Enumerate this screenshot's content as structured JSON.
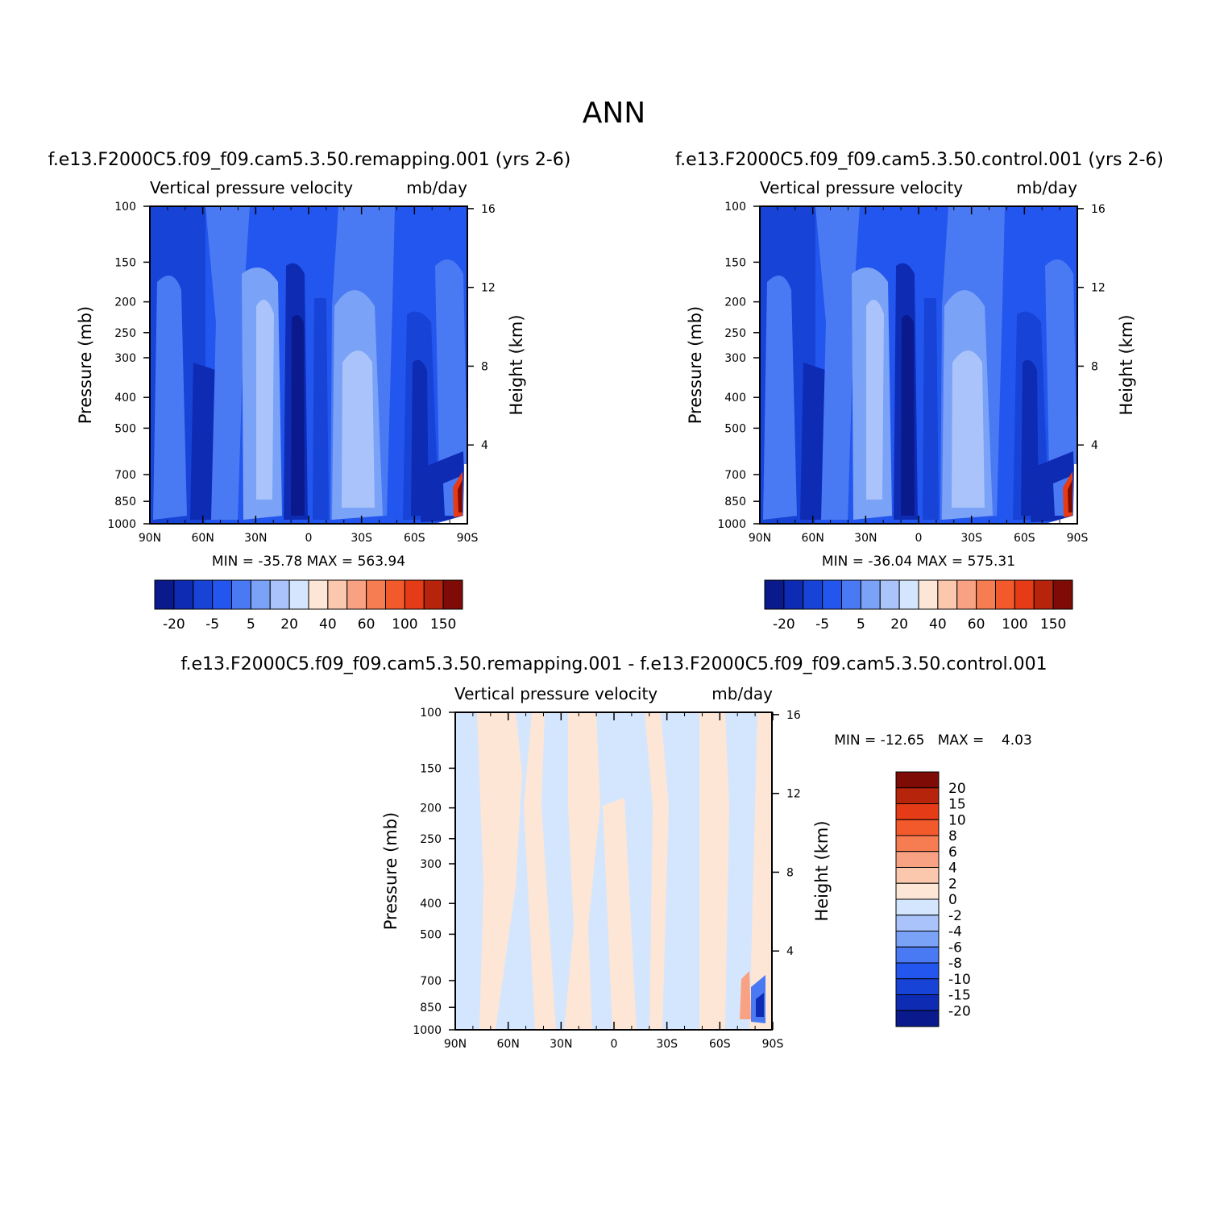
{
  "figure_title": "ANN",
  "colors": {
    "blue_scale": [
      "#0a1a8c",
      "#0e2bb4",
      "#1743d6",
      "#2356ee",
      "#4a7af3",
      "#7aa2f7",
      "#aac4fb",
      "#d4e6fd"
    ],
    "red_scale": [
      "#fde6d6",
      "#fcc8ad",
      "#f9a283",
      "#f67c52",
      "#f25a2c",
      "#e63b17",
      "#b7240c",
      "#7e0b05"
    ]
  },
  "chart_data": [
    {
      "type": "heatmap",
      "title": "f.e13.F2000C5.f09_f09.cam5.3.50.remapping.001 (yrs 2-6)",
      "subtitle_left": "Vertical pressure velocity",
      "subtitle_right": "mb/day",
      "ylabel": "Pressure (mb)",
      "ylabel_right": "Height (km)",
      "x_ticks": [
        "90N",
        "60N",
        "30N",
        "0",
        "30S",
        "60S",
        "90S"
      ],
      "y_ticks": [
        "100",
        "150",
        "200",
        "250",
        "300",
        "400",
        "500",
        "700",
        "850",
        "1000"
      ],
      "y_ticks_right": [
        "16",
        "12",
        "8",
        "4"
      ],
      "ylim": [
        1000,
        100
      ],
      "log_y": true,
      "stats": "MIN = -35.78   MAX = 563.94",
      "colorbar": {
        "orientation": "horizontal",
        "labels": [
          "-20",
          "-5",
          "5",
          "20",
          "40",
          "60",
          "100",
          "150"
        ]
      }
    },
    {
      "type": "heatmap",
      "title": "f.e13.F2000C5.f09_f09.cam5.3.50.control.001 (yrs 2-6)",
      "subtitle_left": "Vertical pressure velocity",
      "subtitle_right": "mb/day",
      "ylabel": "Pressure (mb)",
      "ylabel_right": "Height (km)",
      "x_ticks": [
        "90N",
        "60N",
        "30N",
        "0",
        "30S",
        "60S",
        "90S"
      ],
      "y_ticks": [
        "100",
        "150",
        "200",
        "250",
        "300",
        "400",
        "500",
        "700",
        "850",
        "1000"
      ],
      "y_ticks_right": [
        "16",
        "12",
        "8",
        "4"
      ],
      "ylim": [
        1000,
        100
      ],
      "log_y": true,
      "stats": "MIN = -36.04   MAX = 575.31",
      "colorbar": {
        "orientation": "horizontal",
        "labels": [
          "-20",
          "-5",
          "5",
          "20",
          "40",
          "60",
          "100",
          "150"
        ]
      }
    },
    {
      "type": "heatmap",
      "title": "f.e13.F2000C5.f09_f09.cam5.3.50.remapping.001 - f.e13.F2000C5.f09_f09.cam5.3.50.control.001",
      "subtitle_left": "Vertical pressure velocity",
      "subtitle_right": "mb/day",
      "ylabel": "Pressure (mb)",
      "ylabel_right": "Height (km)",
      "x_ticks": [
        "90N",
        "60N",
        "30N",
        "0",
        "30S",
        "60S",
        "90S"
      ],
      "y_ticks": [
        "100",
        "150",
        "200",
        "250",
        "300",
        "400",
        "500",
        "700",
        "850",
        "1000"
      ],
      "y_ticks_right": [
        "16",
        "12",
        "8",
        "4"
      ],
      "ylim": [
        1000,
        100
      ],
      "log_y": true,
      "stats": "MIN = -12.65   MAX =    4.03",
      "colorbar": {
        "orientation": "vertical",
        "labels": [
          "20",
          "15",
          "10",
          "8",
          "6",
          "4",
          "2",
          "0",
          "-2",
          "-4",
          "-6",
          "-8",
          "-10",
          "-15",
          "-20"
        ]
      }
    }
  ]
}
